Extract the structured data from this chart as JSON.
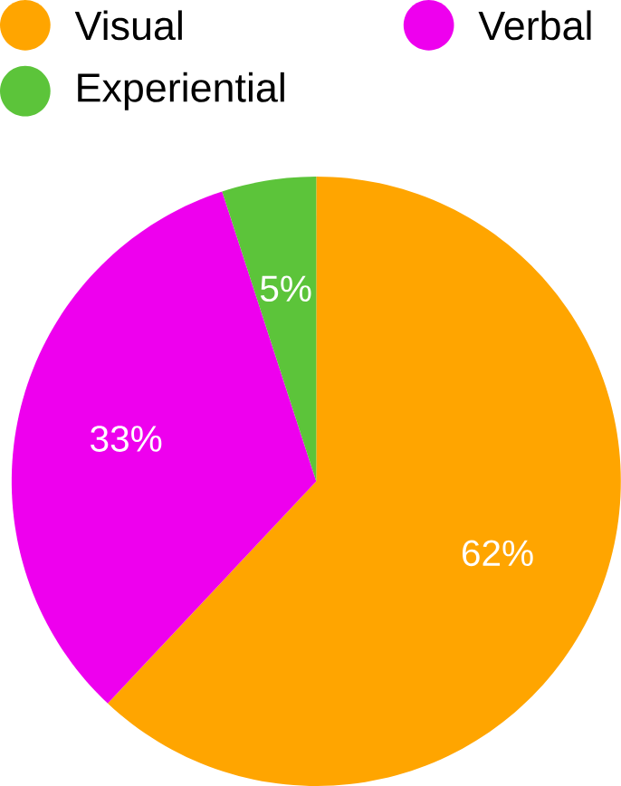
{
  "chart_data": {
    "type": "pie",
    "categories": [
      "Visual",
      "Verbal",
      "Experiential"
    ],
    "values": [
      62,
      33,
      5
    ],
    "colors": [
      "#ffa500",
      "#ee00ee",
      "#5cc43a"
    ],
    "value_labels": [
      "62%",
      "33%",
      "5%"
    ],
    "legend": "top"
  }
}
